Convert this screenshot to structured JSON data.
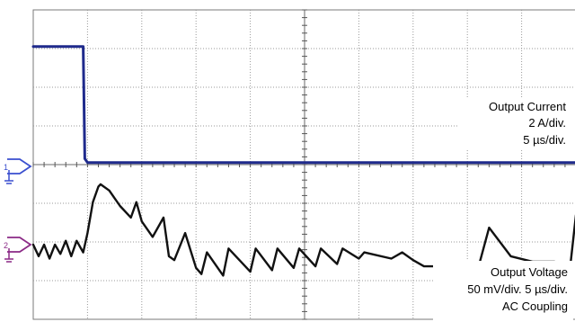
{
  "chart_data": {
    "type": "line",
    "title": "",
    "xlabel": "",
    "ylabel": "",
    "time_units": "µs",
    "time_per_division": 5,
    "horizontal_divisions": 10,
    "vertical_divisions": 8,
    "x_range_us": [
      0,
      50
    ],
    "grid": true,
    "series": [
      {
        "name": "Output Current",
        "color": "#1f2a8c",
        "units": "A",
        "volts_per_division": 2,
        "x": [
          0,
          1,
          2,
          3,
          4,
          4.6,
          4.75,
          5,
          6,
          10,
          20,
          30,
          40,
          50
        ],
        "y": [
          6.2,
          6.2,
          6.2,
          6.2,
          6.2,
          6.2,
          0.4,
          0.2,
          0.2,
          0.2,
          0.2,
          0.2,
          0.2,
          0.2
        ]
      },
      {
        "name": "Output Voltage",
        "color": "#111111",
        "units": "mV",
        "volts_per_division": 50,
        "x": [
          0,
          0.5,
          1,
          1.5,
          2,
          2.5,
          3,
          3.5,
          4,
          4.6,
          5,
          5.5,
          6,
          6.2,
          7,
          8,
          9,
          9.5,
          10,
          11,
          12,
          12.5,
          13,
          14,
          15,
          15.5,
          16,
          17.5,
          18,
          20,
          20.5,
          22,
          22.5,
          24,
          24.5,
          26,
          26.5,
          28,
          28.5,
          30,
          30.5,
          33,
          34,
          35,
          36,
          37,
          38,
          38.6,
          40,
          41,
          42,
          44,
          46,
          48,
          49,
          49.5,
          50
        ],
        "y": [
          0,
          -15,
          0,
          -18,
          0,
          -12,
          5,
          -15,
          5,
          -10,
          15,
          55,
          75,
          78,
          70,
          50,
          35,
          55,
          30,
          10,
          35,
          -15,
          -20,
          15,
          -30,
          -38,
          -10,
          -40,
          -5,
          -35,
          -5,
          -33,
          -5,
          -30,
          -5,
          -28,
          -5,
          -25,
          -5,
          -18,
          -10,
          -18,
          -10,
          -20,
          -28,
          -28,
          -28,
          -30,
          -30,
          -30,
          22,
          -15,
          -22,
          -22,
          -25,
          -25,
          38
        ]
      }
    ],
    "channels": [
      {
        "name": "current",
        "number": "1",
        "color": "#1f2a8c",
        "ground_marker_color": "#3a4fcf"
      },
      {
        "name": "voltage",
        "number": "2",
        "color": "#111111",
        "ground_marker_color": "#8b2a86"
      }
    ]
  },
  "annotations": {
    "current": {
      "line1": "Output Current",
      "line2": "2 A/div.",
      "line3": "5 µs/div."
    },
    "voltage": {
      "line1": "Output Voltage",
      "line2": "50 mV/div. 5 µs/div.",
      "line3": "AC Coupling"
    }
  }
}
